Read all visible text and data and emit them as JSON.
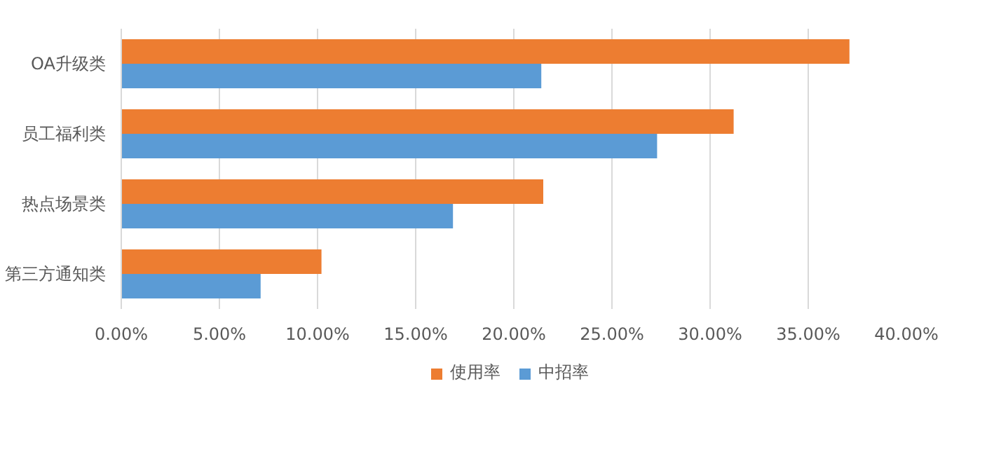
{
  "chart_data": {
    "type": "bar",
    "orientation": "horizontal",
    "categories": [
      "OA升级类",
      "员工福利类",
      "热点场景类",
      "第三方通知类"
    ],
    "series": [
      {
        "name": "使用率",
        "color": "#ed7d31",
        "values": [
          37.1,
          31.2,
          21.5,
          10.2
        ]
      },
      {
        "name": "中招率",
        "color": "#5b9bd5",
        "values": [
          21.4,
          27.3,
          16.9,
          7.1
        ]
      }
    ],
    "xlim": [
      0,
      40
    ],
    "xticks": [
      {
        "value": 0,
        "label": "0.00%"
      },
      {
        "value": 5,
        "label": "5.00%"
      },
      {
        "value": 10,
        "label": "10.00%"
      },
      {
        "value": 15,
        "label": "15.00%"
      },
      {
        "value": 20,
        "label": "20.00%"
      },
      {
        "value": 25,
        "label": "25.00%"
      },
      {
        "value": 30,
        "label": "30.00%"
      },
      {
        "value": 35,
        "label": "35.00%"
      },
      {
        "value": 40,
        "label": "40.00%"
      }
    ],
    "grid": "x",
    "legend": "bottom"
  }
}
